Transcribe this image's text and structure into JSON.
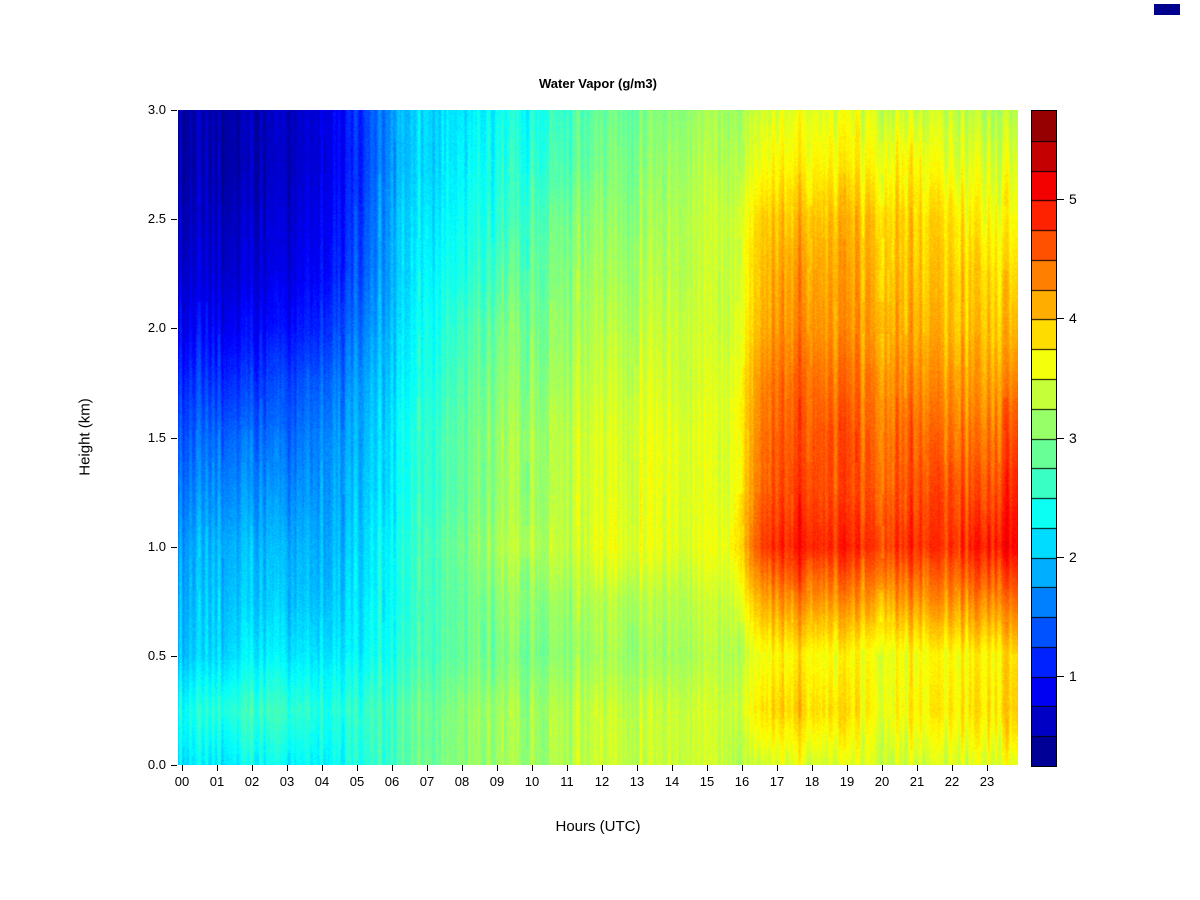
{
  "title": "Water Vapor (g/m3)",
  "colors": {
    "background": "#ffffff",
    "axis": "#000000",
    "text": "#000000",
    "corner_swatch": "#00008F"
  },
  "chart_data": {
    "type": "heatmap",
    "title": "Water Vapor (g/m3)",
    "xlabel": "Hours (UTC)",
    "ylabel": "Height (km)",
    "x_tick_labels": [
      "00",
      "01",
      "02",
      "03",
      "04",
      "05",
      "06",
      "07",
      "08",
      "09",
      "10",
      "11",
      "12",
      "13",
      "14",
      "15",
      "16",
      "17",
      "18",
      "19",
      "20",
      "21",
      "22",
      "23"
    ],
    "y_tick_labels": [
      "0.0",
      "0.5",
      "1.0",
      "1.5",
      "2.0",
      "2.5",
      "3.0"
    ],
    "y_tick_values": [
      0.0,
      0.5,
      1.0,
      1.5,
      2.0,
      2.5,
      3.0
    ],
    "x_range": [
      0,
      24
    ],
    "y_range": [
      0,
      3
    ],
    "value_range": [
      0.25,
      5.75
    ],
    "colorbar_ticks": [
      1,
      2,
      3,
      4,
      5
    ],
    "colorbar_blocks": 22,
    "legend_position": "right",
    "grid_lines": false,
    "colormap_stops": [
      [
        0.0,
        "#000080"
      ],
      [
        0.125,
        "#0000FF"
      ],
      [
        0.25,
        "#0080FF"
      ],
      [
        0.375,
        "#00FFFF"
      ],
      [
        0.5,
        "#80FF80"
      ],
      [
        0.625,
        "#FFFF00"
      ],
      [
        0.75,
        "#FF8000"
      ],
      [
        0.875,
        "#FF0000"
      ],
      [
        1.0,
        "#800000"
      ]
    ],
    "grid": {
      "hours": [
        0,
        1,
        2,
        3,
        4,
        5,
        6,
        7,
        8,
        9,
        10,
        11,
        12,
        13,
        14,
        15,
        16,
        17,
        18,
        19,
        20,
        21,
        22,
        23
      ],
      "heights": [
        0.0,
        0.25,
        0.5,
        0.75,
        1.0,
        1.25,
        1.5,
        1.75,
        2.0,
        2.25,
        2.5,
        2.75,
        3.0
      ],
      "rows_order": "bottom_to_top",
      "values": [
        [
          2.2,
          2.2,
          2.3,
          2.3,
          2.3,
          2.5,
          2.7,
          2.9,
          3.1,
          3.2,
          3.2,
          3.3,
          3.4,
          3.4,
          3.4,
          3.4,
          3.5,
          3.6,
          3.5,
          3.5,
          3.5,
          3.5,
          3.5,
          3.5
        ],
        [
          2.4,
          2.5,
          2.6,
          2.6,
          2.5,
          2.6,
          2.7,
          2.9,
          3.1,
          3.2,
          3.2,
          3.3,
          3.4,
          3.4,
          3.4,
          3.4,
          3.9,
          4.0,
          3.9,
          3.7,
          3.8,
          3.8,
          3.8,
          3.9
        ],
        [
          2.0,
          2.1,
          2.2,
          2.2,
          2.2,
          2.3,
          2.5,
          2.7,
          2.9,
          3.0,
          3.0,
          3.1,
          3.2,
          3.2,
          3.2,
          3.3,
          3.7,
          3.8,
          3.7,
          3.6,
          3.7,
          3.7,
          3.7,
          3.8
        ],
        [
          1.9,
          2.0,
          2.0,
          2.0,
          2.0,
          2.2,
          2.4,
          2.7,
          2.9,
          3.1,
          3.1,
          3.2,
          3.3,
          3.3,
          3.3,
          3.4,
          4.2,
          4.4,
          4.3,
          4.2,
          4.3,
          4.3,
          4.3,
          4.4
        ],
        [
          1.8,
          1.9,
          1.9,
          1.9,
          1.9,
          2.1,
          2.4,
          2.7,
          3.0,
          3.3,
          3.3,
          3.4,
          3.6,
          3.6,
          3.5,
          3.6,
          4.8,
          5.0,
          4.9,
          4.8,
          4.9,
          4.8,
          4.9,
          5.0
        ],
        [
          1.6,
          1.7,
          1.7,
          1.7,
          1.8,
          2.0,
          2.3,
          2.6,
          2.9,
          3.2,
          3.2,
          3.4,
          3.5,
          3.6,
          3.5,
          3.5,
          4.6,
          4.8,
          4.7,
          4.6,
          4.7,
          4.7,
          4.6,
          4.8
        ],
        [
          1.4,
          1.5,
          1.5,
          1.5,
          1.7,
          1.9,
          2.3,
          2.6,
          2.9,
          3.2,
          3.2,
          3.4,
          3.5,
          3.6,
          3.5,
          3.5,
          4.5,
          4.7,
          4.7,
          4.5,
          4.6,
          4.5,
          4.4,
          4.6
        ],
        [
          1.2,
          1.2,
          1.2,
          1.3,
          1.5,
          1.8,
          2.2,
          2.5,
          2.8,
          3.1,
          3.1,
          3.3,
          3.4,
          3.5,
          3.4,
          3.5,
          4.4,
          4.6,
          4.5,
          4.4,
          4.4,
          4.3,
          4.2,
          4.3
        ],
        [
          0.9,
          0.9,
          0.9,
          1.0,
          1.2,
          1.6,
          2.1,
          2.4,
          2.7,
          3.0,
          3.0,
          3.2,
          3.3,
          3.4,
          3.4,
          3.4,
          4.2,
          4.4,
          4.3,
          4.2,
          4.2,
          4.1,
          4.0,
          4.0
        ],
        [
          0.7,
          0.7,
          0.7,
          0.8,
          1.0,
          1.4,
          2.0,
          2.3,
          2.5,
          2.8,
          2.9,
          3.1,
          3.2,
          3.3,
          3.3,
          3.4,
          4.1,
          4.3,
          4.2,
          4.1,
          4.1,
          4.0,
          3.9,
          3.8
        ],
        [
          0.6,
          0.6,
          0.6,
          0.7,
          0.9,
          1.3,
          2.0,
          2.2,
          2.4,
          2.6,
          2.8,
          3.0,
          3.1,
          3.2,
          3.3,
          3.4,
          4.0,
          4.1,
          4.1,
          4.0,
          4.0,
          3.9,
          3.7,
          3.6
        ],
        [
          0.5,
          0.5,
          0.5,
          0.6,
          0.8,
          1.2,
          1.9,
          2.1,
          2.3,
          2.5,
          2.6,
          2.8,
          3.0,
          3.1,
          3.2,
          3.3,
          3.7,
          3.8,
          3.8,
          3.7,
          3.8,
          3.6,
          3.5,
          3.4
        ],
        [
          0.5,
          0.5,
          0.5,
          0.6,
          0.8,
          1.2,
          1.9,
          2.1,
          2.2,
          2.4,
          2.5,
          2.7,
          2.9,
          3.0,
          3.1,
          3.2,
          3.5,
          3.6,
          3.6,
          3.5,
          3.5,
          3.4,
          3.3,
          3.2
        ]
      ]
    },
    "texture": {
      "column_noise": 0.3,
      "pixel_noise": 0.18
    }
  }
}
